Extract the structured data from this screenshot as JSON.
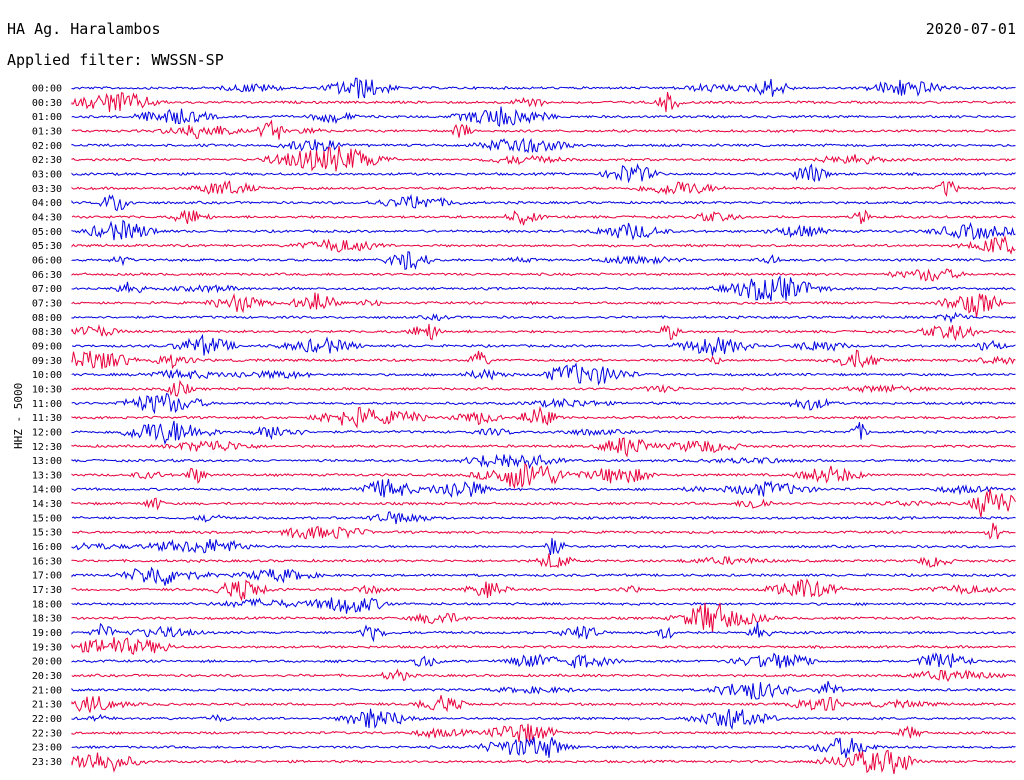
{
  "header": {
    "station": "HA Ag. Haralambos",
    "date": "2020-07-01",
    "filter": "Applied filter: WWSSN-SP",
    "channel": "HHZ - 5000"
  },
  "colors": {
    "odd_trace": "#0000e0",
    "even_trace": "#e8003c"
  },
  "chart_data": {
    "type": "line",
    "title": "HA Ag. Haralambos",
    "subtitle": "Applied filter: WWSSN-SP",
    "ylabel": "HHZ - 5000",
    "categories": [
      "00:00",
      "00:30",
      "01:00",
      "01:30",
      "02:00",
      "02:30",
      "03:00",
      "03:30",
      "04:00",
      "04:30",
      "05:00",
      "05:30",
      "06:00",
      "06:30",
      "07:00",
      "07:30",
      "08:00",
      "08:30",
      "09:00",
      "09:30",
      "10:00",
      "10:30",
      "11:00",
      "11:30",
      "12:00",
      "12:30",
      "13:00",
      "13:30",
      "14:00",
      "14:30",
      "15:00",
      "15:30",
      "16:00",
      "16:30",
      "17:00",
      "17:30",
      "18:00",
      "18:30",
      "19:00",
      "19:30",
      "20:00",
      "20:30",
      "21:00",
      "21:30",
      "22:00",
      "22:30",
      "23:00",
      "23:30"
    ],
    "color_cycle": [
      "#0000e0",
      "#e8003c"
    ],
    "grid": false,
    "legend": "none"
  }
}
